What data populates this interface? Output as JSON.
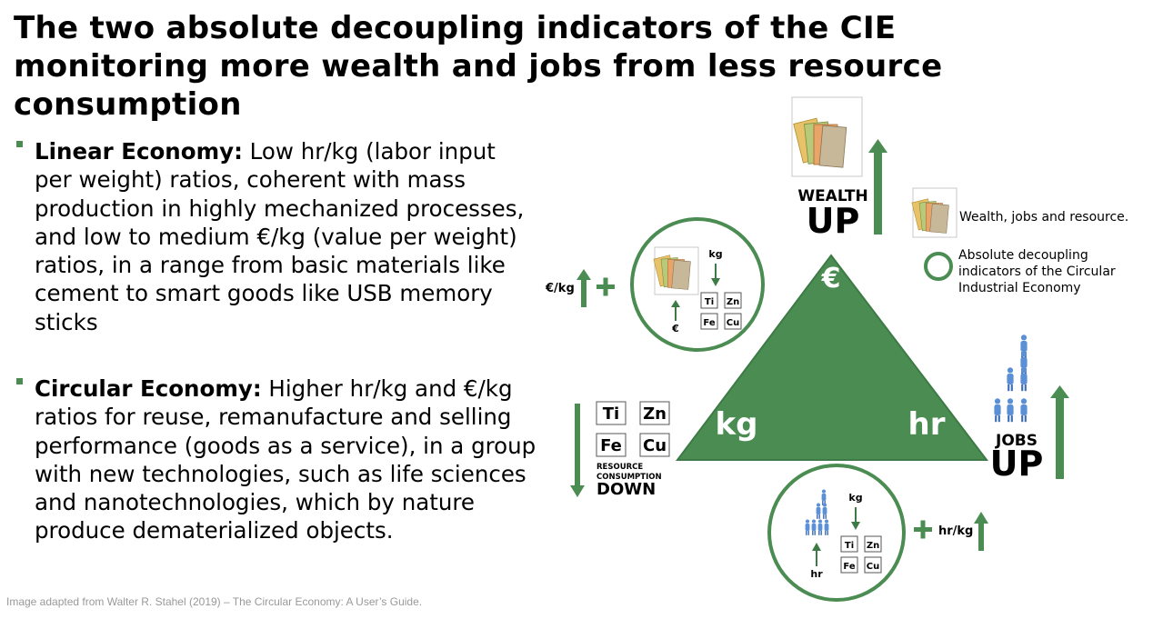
{
  "title": "The two absolute decoupling indicators of the CIE monitoring more wealth and jobs from less resource consumption",
  "bullets": [
    {
      "term": "Linear Economy:",
      "text": " Low hr/kg (labor input per weight) ratios, coherent with mass production in highly mechanized processes, and low to medium €/kg (value per weight) ratios, in a range from basic materials like cement to smart goods like USB memory sticks"
    },
    {
      "term": "Circular Economy:",
      "text": " Higher hr/kg and €/kg ratios for reuse, remanufacture and selling performance (goods as a service), in a group with new technologies, such as life sciences and nanotechnologies, which by nature produce dematerialized objects."
    }
  ],
  "credit": "Image adapted from Walter R. Stahel (2019) – The Circular Economy: A User’s Guide.",
  "diagram": {
    "wealth_label": "WEALTH",
    "wealth_up": "UP",
    "jobs_label": "JOBS",
    "jobs_up": "UP",
    "resource_label_1": "RESOURCE",
    "resource_label_2": "CONSUMPTION",
    "resource_down": "DOWN",
    "euro_symbol": "€",
    "kg_corner": "kg",
    "hr_corner": "hr",
    "euro_per_kg": "€/kg",
    "hr_per_kg": "hr/kg",
    "plus": "+",
    "elements": [
      "Ti",
      "Zn",
      "Fe",
      "Cu"
    ],
    "circle1": {
      "kg": "kg",
      "euro": "€"
    },
    "circle2": {
      "kg": "kg",
      "hr": "hr"
    },
    "legend": {
      "item1": "Wealth, jobs and resource.",
      "item2_line1": "Absolute decoupling",
      "item2_line2": "indicators of the Circular",
      "item2_line3": "Industrial Economy"
    },
    "colors": {
      "green": "#4a8c52",
      "dark_green": "#3d7a45",
      "person_blue": "#5b8fd6"
    },
    "icons": [
      "banknotes-icon",
      "people-icon",
      "arrow-up-icon",
      "arrow-down-icon",
      "plus-icon"
    ]
  }
}
